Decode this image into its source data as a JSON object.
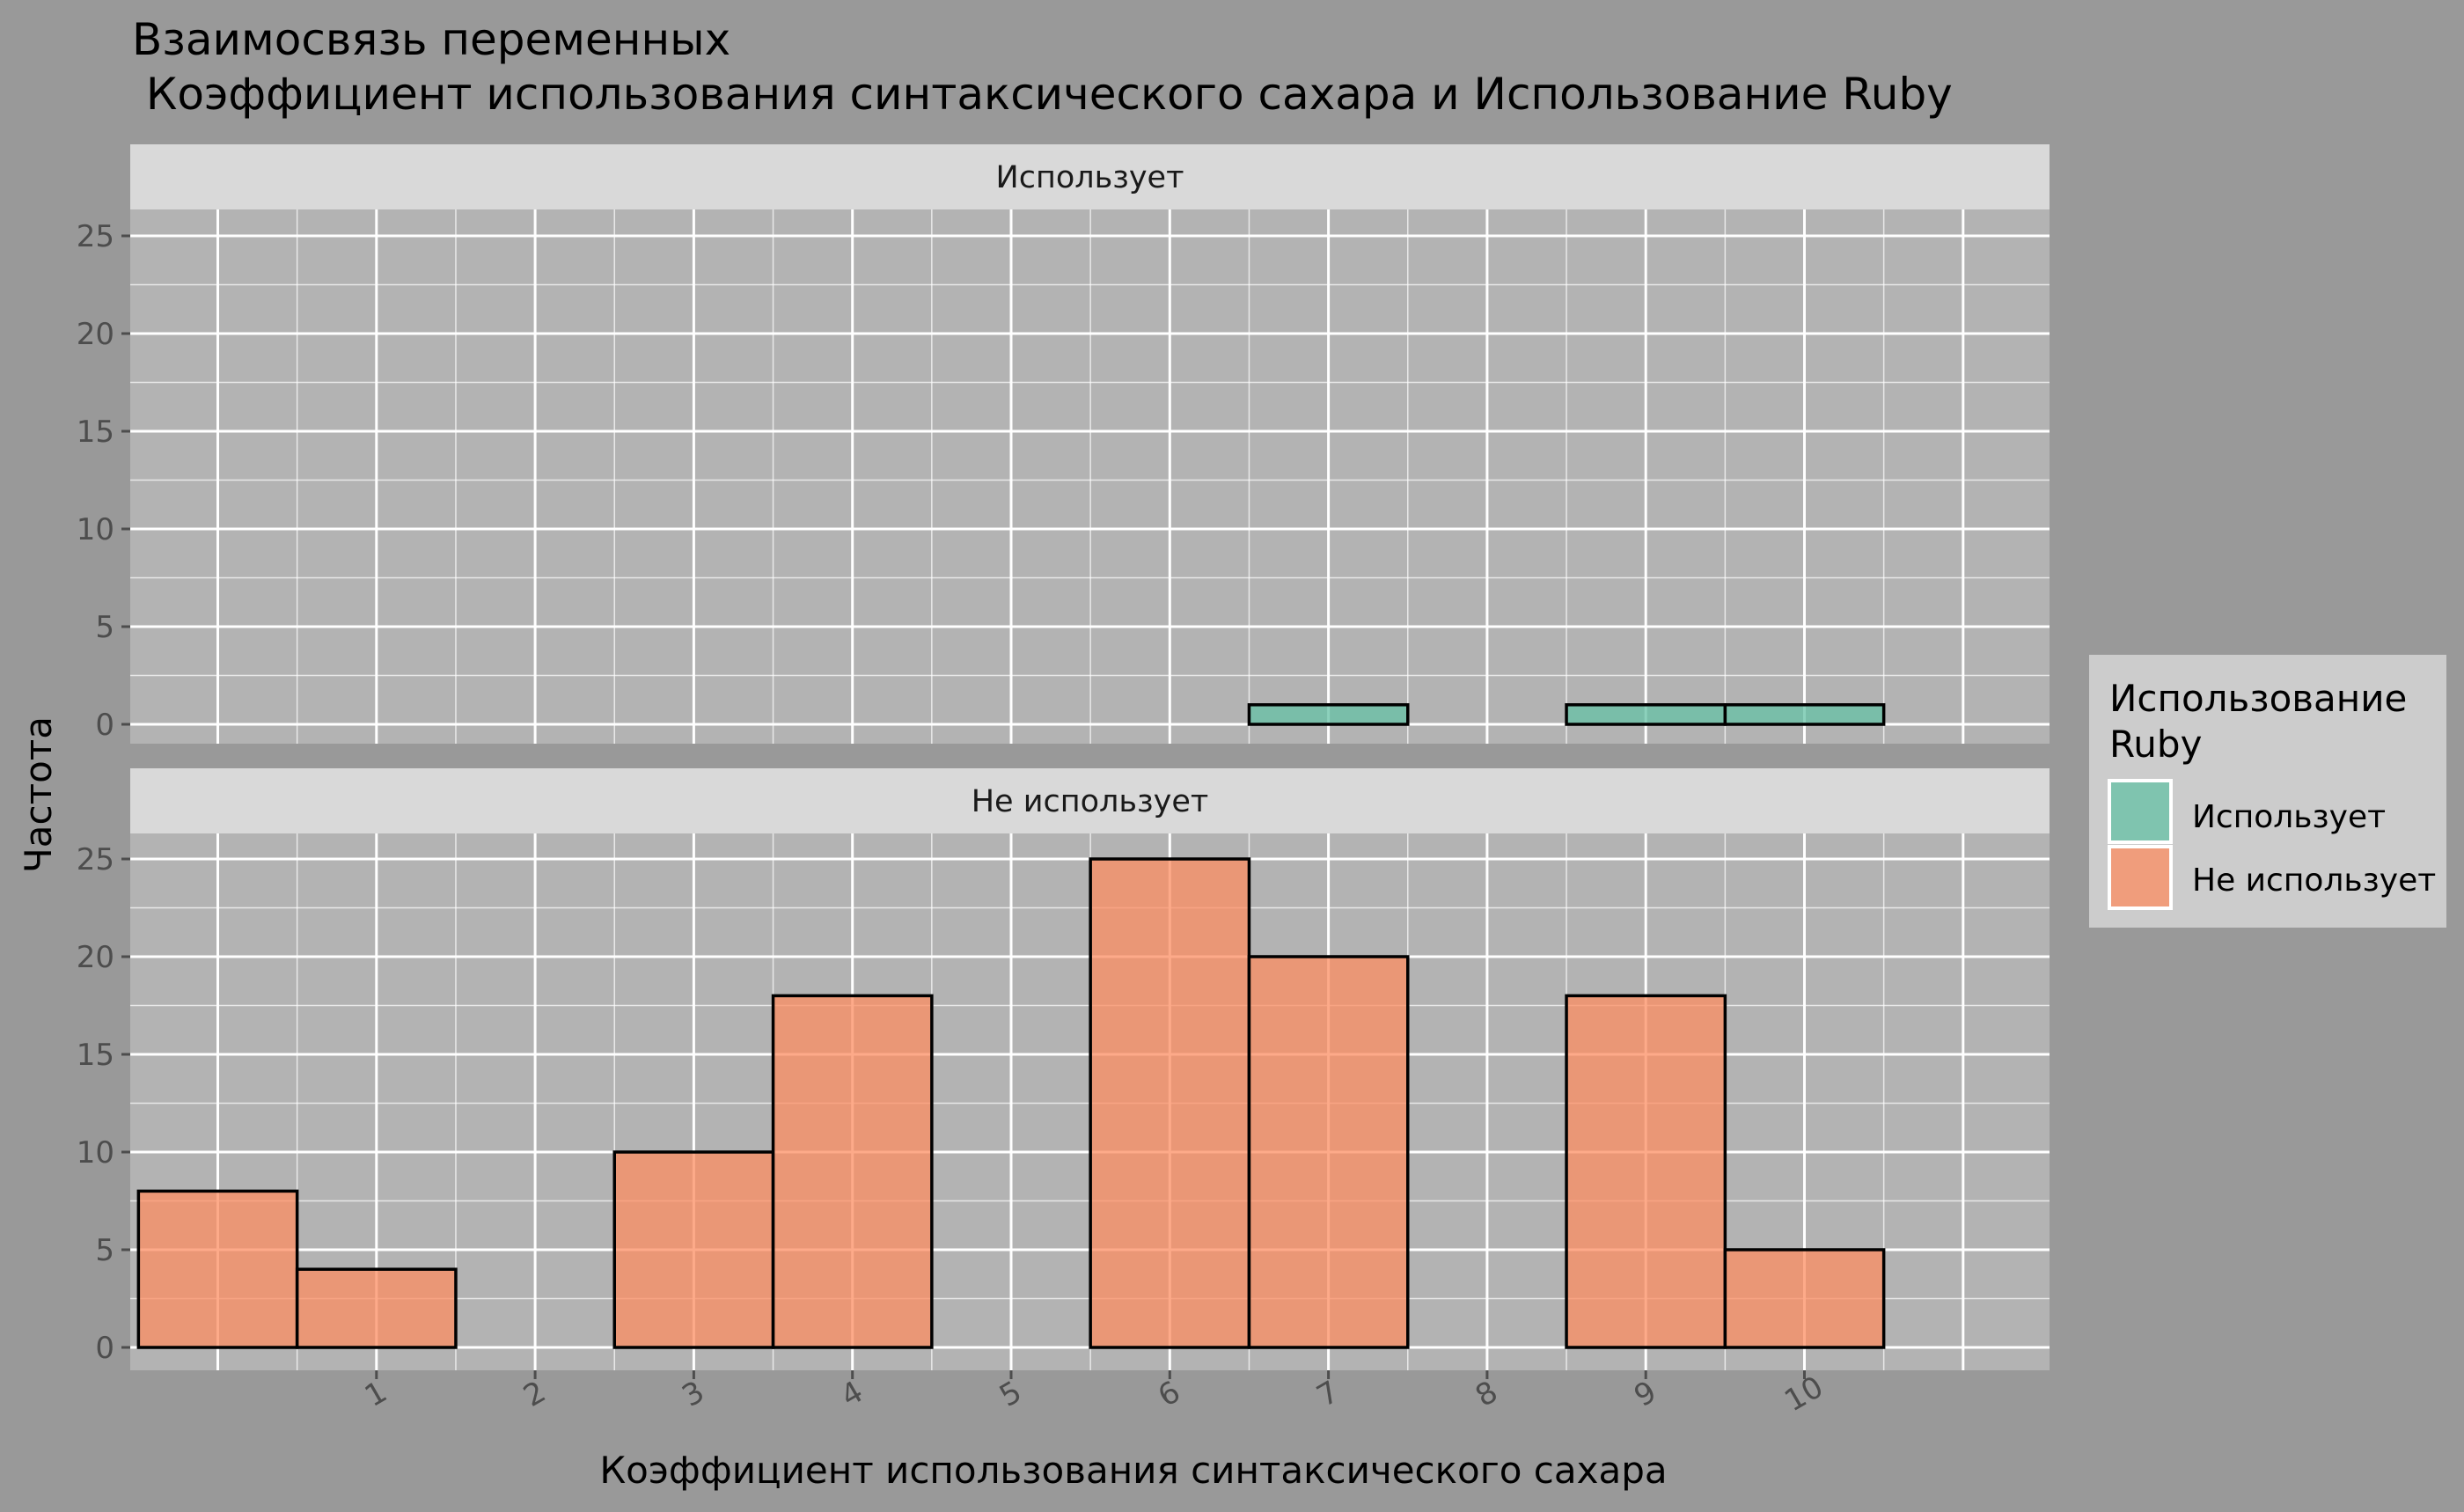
{
  "chart_data": {
    "type": "bar",
    "title_line1": "Взаимосвязь переменных",
    "title_line2": " Коэффициент использования синтаксического сахара и Использование Ruby",
    "xlabel": "Коэффициент использования синтаксического сахара",
    "ylabel": "Частота",
    "categories": [
      0,
      1,
      2,
      3,
      4,
      5,
      6,
      7,
      8,
      9,
      10
    ],
    "x_tick_labels": [
      "1",
      "2",
      "3",
      "4",
      "5",
      "6",
      "7",
      "8",
      "9",
      "10"
    ],
    "ylim": [
      0,
      26
    ],
    "y_ticks": [
      0,
      5,
      10,
      15,
      20,
      25
    ],
    "grid": true,
    "legend": {
      "title_line1": "Использование",
      "title_line2": "Ruby",
      "placement": "right"
    },
    "panels": [
      {
        "strip": "Использует",
        "color": "#66c2a5",
        "values": [
          0,
          0,
          0,
          0,
          0,
          0,
          0,
          1,
          0,
          1,
          1
        ]
      },
      {
        "strip": "Не использует",
        "color": "#fc8d62",
        "values": [
          8,
          4,
          0,
          10,
          18,
          0,
          25,
          20,
          0,
          18,
          5
        ]
      }
    ]
  }
}
